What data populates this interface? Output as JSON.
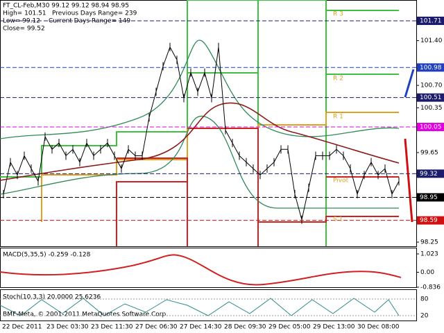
{
  "header": {
    "symbol_line": "FT_CL-Feb,M30  99.12 99.12 98.94 98.95",
    "high": "High= 101.51",
    "prev_range": "Previous Days Range= 239",
    "low": "Low= 99.12",
    "curr_range": "Current Days Range= 149",
    "close": "Close= 99.52"
  },
  "price_panel": {
    "axis_ticks": [
      101.71,
      {
        "value": 101.4,
        "label": "101.40"
      },
      {
        "value": 100.7,
        "label": "100.70"
      },
      100.35,
      99.65,
      98.25
    ],
    "boxed_levels": [
      {
        "value": 101.71,
        "color": "#1c1c6c"
      },
      {
        "value": 100.98,
        "color": "#2040c0"
      },
      {
        "value": 100.51,
        "color": "#1c1c6c"
      },
      {
        "value": 100.05,
        "color": "#e000e0"
      },
      {
        "value": 99.32,
        "color": "#1c1c6c"
      },
      {
        "value": 98.95,
        "color": "#000000"
      },
      {
        "value": 98.59,
        "color": "#d01010"
      }
    ],
    "level_labels": [
      "R 3",
      "R 2",
      "R 1",
      "Pivot",
      "S 1"
    ],
    "close": [
      99.0,
      99.5,
      99.3,
      99.6,
      99.4,
      99.2,
      99.9,
      99.7,
      99.8,
      99.6,
      99.7,
      99.5,
      99.8,
      99.6,
      99.7,
      99.8,
      99.6,
      99.4,
      99.7,
      99.6,
      99.6,
      100.2,
      100.6,
      101.0,
      101.3,
      101.1,
      100.5,
      100.9,
      100.6,
      100.9,
      100.5,
      101.3,
      100.0,
      99.8,
      99.6,
      99.5,
      99.4,
      99.3,
      99.4,
      99.5,
      99.7,
      99.7,
      99.0,
      98.6,
      99.1,
      99.6,
      99.6,
      99.6,
      99.7,
      99.6,
      99.4,
      99.0,
      99.3,
      99.5,
      99.3,
      99.4,
      99.0,
      99.2
    ],
    "close_color": "#000000"
  },
  "macd_panel": {
    "label": "MACD(5,35,5) -0.259 -0.128",
    "axis_ticks": [
      1.023,
      {
        "value": 0,
        "label": "0.00"
      },
      -0.836
    ]
  },
  "stoch_panel": {
    "label": "Stoch(10,3,3) 20.0000 25.6236",
    "axis_ticks": [
      80,
      20
    ],
    "copyright": "BMF-Meta, © 2001-2011 MetaQuotes Software Corp."
  },
  "time_axis": [
    "22 Dec 2011",
    "23 Dec 03:30",
    "23 Dec 11:30",
    "27 Dec 06:30",
    "27 Dec 14:30",
    "28 Dec 09:30",
    "29 Dec 05:00",
    "29 Dec 13:00",
    "30 Dec 08:00"
  ]
}
